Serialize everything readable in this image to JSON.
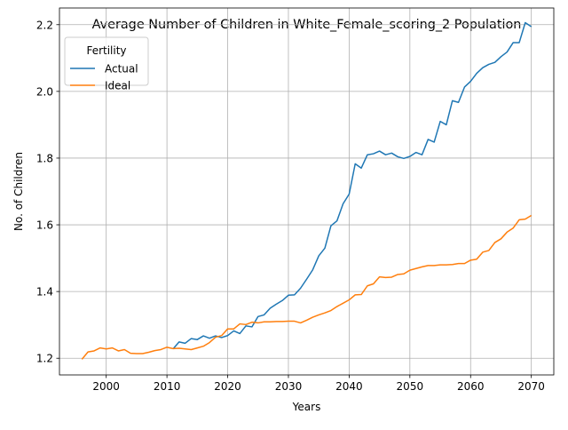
{
  "chart_data": {
    "type": "line",
    "title": "Average Number of Children in White_Female_scoring_2 Population",
    "xlabel": "Years",
    "ylabel": "No. of Children",
    "xlim": [
      1992.3,
      2073.7
    ],
    "ylim": [
      1.15,
      2.25
    ],
    "xticks": [
      2000,
      2010,
      2020,
      2030,
      2040,
      2050,
      2060,
      2070
    ],
    "yticks": [
      1.2,
      1.4,
      1.6,
      1.8,
      2.0,
      2.2
    ],
    "xtick_labels": [
      "2000",
      "2010",
      "2020",
      "2030",
      "2040",
      "2050",
      "2060",
      "2070"
    ],
    "ytick_labels": [
      "1.2",
      "1.4",
      "1.6",
      "1.8",
      "2.0",
      "2.2"
    ],
    "grid": true,
    "legend": {
      "title": "Fertility",
      "placement": "top-left"
    },
    "series": [
      {
        "name": "Actual",
        "color": "#1f77b4",
        "x": [
          2011,
          2012,
          2013,
          2014,
          2015,
          2016,
          2017,
          2018,
          2019,
          2020,
          2021,
          2022,
          2023,
          2024,
          2025,
          2026,
          2027,
          2028,
          2029,
          2030,
          2031,
          2032,
          2033,
          2034,
          2035,
          2036,
          2037,
          2038,
          2039,
          2040,
          2041,
          2042,
          2043,
          2044,
          2045,
          2046,
          2047,
          2048,
          2049,
          2050,
          2051,
          2052,
          2053,
          2054,
          2055,
          2056,
          2057,
          2058,
          2059,
          2060,
          2061,
          2062,
          2063,
          2064,
          2065,
          2066,
          2067,
          2068,
          2069,
          2070
        ],
        "y": [
          1.228,
          1.249,
          1.245,
          1.259,
          1.256,
          1.267,
          1.26,
          1.267,
          1.262,
          1.268,
          1.282,
          1.274,
          1.297,
          1.294,
          1.325,
          1.33,
          1.35,
          1.362,
          1.373,
          1.389,
          1.39,
          1.41,
          1.437,
          1.465,
          1.507,
          1.53,
          1.597,
          1.612,
          1.663,
          1.692,
          1.783,
          1.77,
          1.81,
          1.813,
          1.821,
          1.81,
          1.815,
          1.804,
          1.799,
          1.805,
          1.817,
          1.81,
          1.856,
          1.848,
          1.91,
          1.9,
          1.972,
          1.967,
          2.013,
          2.03,
          2.054,
          2.071,
          2.081,
          2.087,
          2.104,
          2.118,
          2.146,
          2.146,
          2.206,
          2.194
        ]
      },
      {
        "name": "Ideal",
        "color": "#ff7f0e",
        "x": [
          1996,
          1997,
          1998,
          1999,
          2000,
          2001,
          2002,
          2003,
          2004,
          2005,
          2006,
          2007,
          2008,
          2009,
          2010,
          2011,
          2012,
          2013,
          2014,
          2015,
          2016,
          2017,
          2018,
          2019,
          2020,
          2021,
          2022,
          2023,
          2024,
          2025,
          2026,
          2027,
          2028,
          2029,
          2030,
          2031,
          2032,
          2033,
          2034,
          2035,
          2036,
          2037,
          2038,
          2039,
          2040,
          2041,
          2042,
          2043,
          2044,
          2045,
          2046,
          2047,
          2048,
          2049,
          2050,
          2051,
          2052,
          2053,
          2054,
          2055,
          2056,
          2057,
          2058,
          2059,
          2060,
          2061,
          2062,
          2063,
          2064,
          2065,
          2066,
          2067,
          2068,
          2069,
          2070
        ],
        "y": [
          1.197,
          1.219,
          1.222,
          1.231,
          1.228,
          1.231,
          1.222,
          1.226,
          1.215,
          1.214,
          1.214,
          1.218,
          1.223,
          1.226,
          1.233,
          1.229,
          1.23,
          1.228,
          1.226,
          1.231,
          1.236,
          1.247,
          1.263,
          1.268,
          1.288,
          1.288,
          1.303,
          1.301,
          1.308,
          1.306,
          1.309,
          1.309,
          1.31,
          1.31,
          1.311,
          1.311,
          1.306,
          1.314,
          1.323,
          1.33,
          1.336,
          1.343,
          1.355,
          1.365,
          1.375,
          1.39,
          1.391,
          1.417,
          1.423,
          1.444,
          1.442,
          1.443,
          1.451,
          1.453,
          1.464,
          1.469,
          1.474,
          1.478,
          1.478,
          1.48,
          1.48,
          1.481,
          1.484,
          1.484,
          1.494,
          1.497,
          1.518,
          1.523,
          1.547,
          1.558,
          1.578,
          1.59,
          1.615,
          1.617,
          1.628
        ]
      }
    ]
  }
}
